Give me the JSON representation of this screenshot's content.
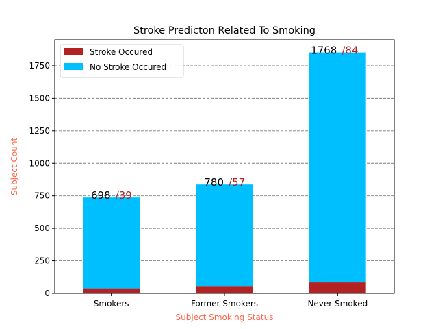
{
  "chart_data": {
    "type": "bar",
    "stacked": true,
    "title": "Stroke Predicton Related To Smoking",
    "xlabel": "Subject Smoking Status",
    "ylabel": "Subject Count",
    "categories": [
      "Smokers",
      "Former Smokers",
      "Never Smoked"
    ],
    "series": [
      {
        "name": "Stroke Occured",
        "values": [
          39,
          57,
          84
        ],
        "color": "#b22222"
      },
      {
        "name": "No Stroke Occured",
        "values": [
          698,
          780,
          1768
        ],
        "color": "#00bfff"
      }
    ],
    "data_labels": [
      {
        "no_stroke": "698",
        "stroke": "/39"
      },
      {
        "no_stroke": "780",
        "stroke": "/57"
      },
      {
        "no_stroke": "1768",
        "stroke": "/84"
      }
    ],
    "ylim": [
      0,
      1950
    ],
    "yticks": [
      0,
      250,
      500,
      750,
      1000,
      1250,
      1500,
      1750
    ],
    "grid": "horizontal-dashed",
    "legend_position": "top-left",
    "axis_label_color": "#ff6347"
  }
}
